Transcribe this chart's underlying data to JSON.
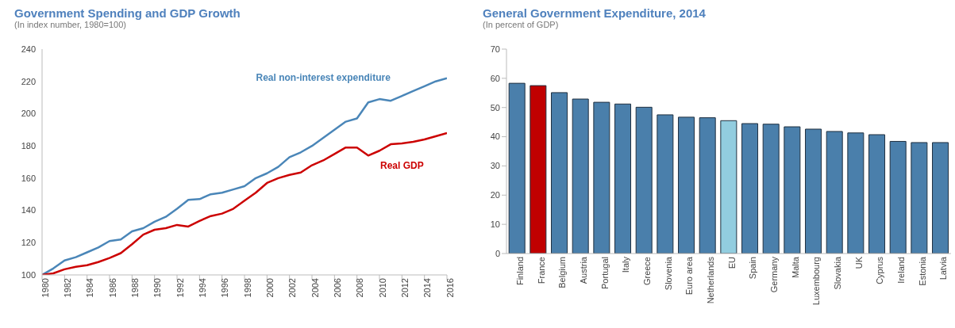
{
  "chart_data": [
    {
      "type": "line",
      "title": "Government Spending and GDP Growth",
      "subtitle": "(In index number, 1980=100)",
      "x": [
        1980,
        1981,
        1982,
        1983,
        1984,
        1985,
        1986,
        1987,
        1988,
        1989,
        1990,
        1991,
        1992,
        1993,
        1994,
        1995,
        1996,
        1997,
        1998,
        1999,
        2000,
        2001,
        2002,
        2003,
        2004,
        2005,
        2006,
        2007,
        2008,
        2009,
        2010,
        2011,
        2012,
        2013,
        2014,
        2015,
        2016
      ],
      "series": [
        {
          "name": "Real non-interest expenditure",
          "color": "#4a86b8",
          "values": [
            100,
            104,
            109,
            111,
            114,
            117,
            121,
            122,
            127,
            129,
            133,
            136,
            141,
            146.5,
            147,
            150,
            151,
            153,
            155,
            160,
            163,
            167,
            173,
            176,
            180,
            185,
            190,
            195,
            197,
            207,
            209,
            208,
            211,
            214,
            217,
            220,
            222
          ]
        },
        {
          "name": "Real GDP",
          "color": "#cc0000",
          "values": [
            100,
            101,
            103.5,
            105,
            106,
            108,
            110.5,
            113.5,
            119,
            125,
            128,
            129,
            131,
            130,
            133.5,
            136.5,
            138,
            141,
            146,
            151,
            157,
            160,
            162,
            163.5,
            168,
            171,
            175,
            179,
            179,
            174,
            177,
            181,
            181.5,
            182.5,
            184,
            186,
            188
          ]
        }
      ],
      "xlim": [
        1980,
        2016
      ],
      "xticks": [
        1980,
        1982,
        1984,
        1986,
        1988,
        1990,
        1992,
        1994,
        1996,
        1998,
        2000,
        2002,
        2004,
        2006,
        2008,
        2010,
        2012,
        2014,
        2016
      ],
      "ylim": [
        100,
        240
      ],
      "yticks": [
        100,
        120,
        140,
        160,
        180,
        200,
        220,
        240
      ],
      "grid": false,
      "legend": false,
      "marker": "none",
      "line_style": "solid"
    },
    {
      "type": "bar",
      "title": "General Government Expenditure, 2014",
      "subtitle": "(In percent of GDP)",
      "categories": [
        "Finland",
        "France",
        "Belgium",
        "Austria",
        "Portugal",
        "Italy",
        "Greece",
        "Slovenia",
        "Euro area",
        "Netherlands",
        "EU",
        "Spain",
        "Germany",
        "Malta",
        "Luxembourg",
        "Slovakia",
        "UK",
        "Cyprus",
        "Ireland",
        "Estonia",
        "Latvia"
      ],
      "values": [
        58.3,
        57.5,
        55.1,
        52.9,
        51.8,
        51.2,
        50.1,
        47.5,
        46.7,
        46.5,
        45.5,
        44.5,
        44.3,
        43.4,
        42.6,
        41.8,
        41.3,
        40.7,
        38.4,
        38.0,
        38.0
      ],
      "colors": [
        "#4a7fab",
        "#c00000",
        "#4a7fab",
        "#4a7fab",
        "#4a7fab",
        "#4a7fab",
        "#4a7fab",
        "#4a7fab",
        "#4a7fab",
        "#4a7fab",
        "#92cddf",
        "#4a7fab",
        "#4a7fab",
        "#4a7fab",
        "#4a7fab",
        "#4a7fab",
        "#4a7fab",
        "#4a7fab",
        "#4a7fab",
        "#4a7fab",
        "#4a7fab"
      ],
      "ylim": [
        0,
        70
      ],
      "yticks": [
        0,
        10,
        20,
        30,
        40,
        50,
        60,
        70
      ],
      "grid": false,
      "legend": false
    }
  ]
}
